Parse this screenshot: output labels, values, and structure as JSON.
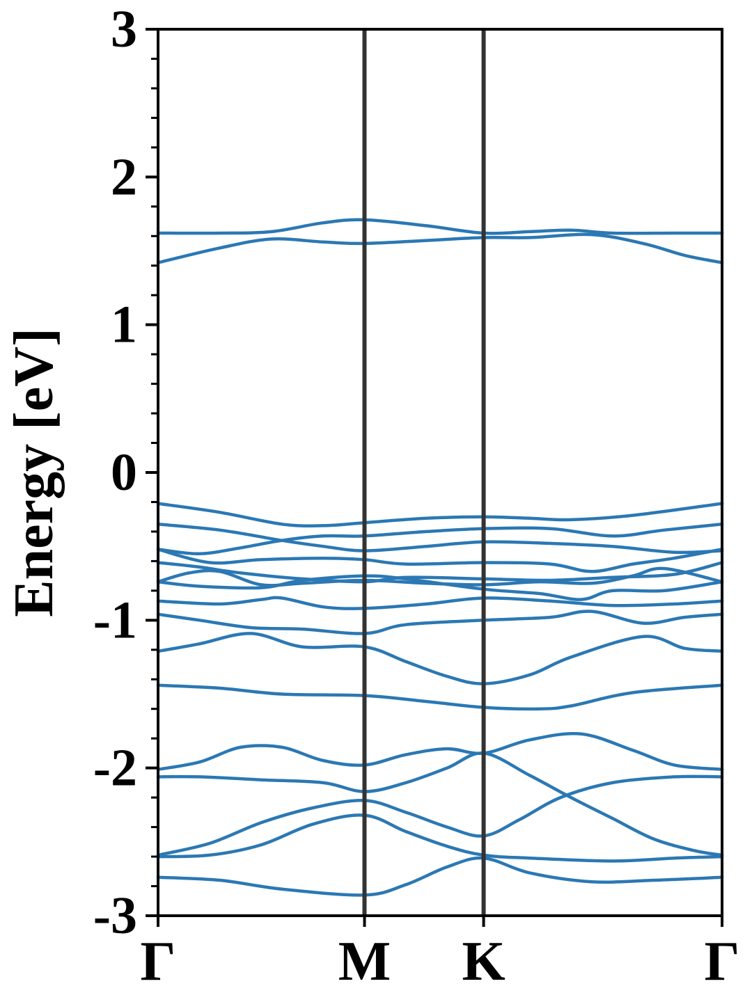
{
  "chart_data": {
    "type": "line",
    "title": "",
    "xlabel": "",
    "ylabel": "Energy [eV]",
    "ylim": [
      -3,
      3
    ],
    "xlim": [
      0,
      2.732
    ],
    "y_ticks": [
      {
        "value": 3,
        "label": "3"
      },
      {
        "value": 2,
        "label": "2"
      },
      {
        "value": 1,
        "label": "1"
      },
      {
        "value": 0,
        "label": "0"
      },
      {
        "value": -1,
        "label": "-1"
      },
      {
        "value": -2,
        "label": "-2"
      },
      {
        "value": -3,
        "label": "-3"
      }
    ],
    "y_minor_step": 0.2,
    "x_ticks": [
      {
        "value": 0,
        "label": "Γ"
      },
      {
        "value": 1,
        "label": "M"
      },
      {
        "value": 1.577,
        "label": "K"
      },
      {
        "value": 2.732,
        "label": "Γ"
      }
    ],
    "high_symmetry_lines": [
      1,
      1.577
    ],
    "grid": false,
    "legend": "none",
    "colors": {
      "band": "#2b78b4",
      "symmetry_line": "#333333",
      "axis": "#000000"
    },
    "series": [
      {
        "points": [
          [
            0,
            1.42
          ],
          [
            0.3,
            1.52
          ],
          [
            0.55,
            1.58
          ],
          [
            0.8,
            1.56
          ],
          [
            1,
            1.55
          ],
          [
            1.3,
            1.57
          ],
          [
            1.577,
            1.59
          ],
          [
            1.8,
            1.59
          ],
          [
            2.1,
            1.61
          ],
          [
            2.35,
            1.55
          ],
          [
            2.55,
            1.47
          ],
          [
            2.732,
            1.42
          ]
        ]
      },
      {
        "points": [
          [
            0,
            1.62
          ],
          [
            0.3,
            1.62
          ],
          [
            0.55,
            1.63
          ],
          [
            0.8,
            1.69
          ],
          [
            1,
            1.71
          ],
          [
            1.3,
            1.67
          ],
          [
            1.577,
            1.62
          ],
          [
            1.8,
            1.63
          ],
          [
            2.0,
            1.64
          ],
          [
            2.2,
            1.62
          ],
          [
            2.5,
            1.62
          ],
          [
            2.732,
            1.62
          ]
        ]
      },
      {
        "points": [
          [
            0,
            -0.21
          ],
          [
            0.3,
            -0.27
          ],
          [
            0.6,
            -0.35
          ],
          [
            0.8,
            -0.36
          ],
          [
            1,
            -0.34
          ],
          [
            1.3,
            -0.31
          ],
          [
            1.577,
            -0.3
          ],
          [
            1.8,
            -0.31
          ],
          [
            2.0,
            -0.32
          ],
          [
            2.3,
            -0.29
          ],
          [
            2.732,
            -0.21
          ]
        ]
      },
      {
        "points": [
          [
            0,
            -0.35
          ],
          [
            0.3,
            -0.39
          ],
          [
            0.6,
            -0.46
          ],
          [
            0.8,
            -0.5
          ],
          [
            1,
            -0.53
          ],
          [
            1.3,
            -0.5
          ],
          [
            1.577,
            -0.47
          ],
          [
            1.9,
            -0.48
          ],
          [
            2.2,
            -0.5
          ],
          [
            2.5,
            -0.54
          ],
          [
            2.732,
            -0.53
          ]
        ]
      },
      {
        "points": [
          [
            0,
            -0.52
          ],
          [
            0.2,
            -0.55
          ],
          [
            0.4,
            -0.51
          ],
          [
            0.6,
            -0.46
          ],
          [
            0.8,
            -0.43
          ],
          [
            1,
            -0.43
          ],
          [
            1.3,
            -0.4
          ],
          [
            1.577,
            -0.38
          ],
          [
            1.9,
            -0.38
          ],
          [
            2.2,
            -0.43
          ],
          [
            2.45,
            -0.39
          ],
          [
            2.732,
            -0.35
          ]
        ]
      },
      {
        "points": [
          [
            0,
            -0.52
          ],
          [
            0.25,
            -0.61
          ],
          [
            0.5,
            -0.59
          ],
          [
            0.8,
            -0.58
          ],
          [
            1,
            -0.59
          ],
          [
            1.2,
            -0.62
          ],
          [
            1.577,
            -0.61
          ],
          [
            1.9,
            -0.62
          ],
          [
            2.1,
            -0.67
          ],
          [
            2.3,
            -0.62
          ],
          [
            2.5,
            -0.58
          ],
          [
            2.732,
            -0.52
          ]
        ]
      },
      {
        "points": [
          [
            0,
            -0.61
          ],
          [
            0.2,
            -0.64
          ],
          [
            0.4,
            -0.68
          ],
          [
            0.7,
            -0.72
          ],
          [
            1,
            -0.74
          ],
          [
            1.2,
            -0.71
          ],
          [
            1.577,
            -0.72
          ],
          [
            1.9,
            -0.73
          ],
          [
            2.2,
            -0.71
          ],
          [
            2.5,
            -0.69
          ],
          [
            2.732,
            -0.61
          ]
        ]
      },
      {
        "points": [
          [
            0,
            -0.74
          ],
          [
            0.15,
            -0.68
          ],
          [
            0.3,
            -0.67
          ],
          [
            0.5,
            -0.76
          ],
          [
            0.7,
            -0.75
          ],
          [
            1,
            -0.73
          ],
          [
            1.3,
            -0.75
          ],
          [
            1.577,
            -0.76
          ],
          [
            1.85,
            -0.74
          ],
          [
            2.1,
            -0.75
          ],
          [
            2.3,
            -0.7
          ],
          [
            2.45,
            -0.65
          ],
          [
            2.732,
            -0.74
          ]
        ]
      },
      {
        "points": [
          [
            0,
            -0.74
          ],
          [
            0.2,
            -0.77
          ],
          [
            0.5,
            -0.78
          ],
          [
            0.7,
            -0.73
          ],
          [
            1,
            -0.7
          ],
          [
            1.2,
            -0.72
          ],
          [
            1.577,
            -0.79
          ],
          [
            1.85,
            -0.82
          ],
          [
            2.05,
            -0.86
          ],
          [
            2.2,
            -0.8
          ],
          [
            2.45,
            -0.8
          ],
          [
            2.732,
            -0.74
          ]
        ]
      },
      {
        "points": [
          [
            0,
            -0.87
          ],
          [
            0.3,
            -0.89
          ],
          [
            0.5,
            -0.86
          ],
          [
            0.6,
            -0.85
          ],
          [
            0.8,
            -0.91
          ],
          [
            1,
            -0.92
          ],
          [
            1.3,
            -0.89
          ],
          [
            1.577,
            -0.85
          ],
          [
            1.9,
            -0.87
          ],
          [
            2.2,
            -0.9
          ],
          [
            2.5,
            -0.89
          ],
          [
            2.732,
            -0.87
          ]
        ]
      },
      {
        "points": [
          [
            0,
            -0.96
          ],
          [
            0.2,
            -1.0
          ],
          [
            0.45,
            -1.05
          ],
          [
            0.7,
            -1.06
          ],
          [
            1,
            -1.09
          ],
          [
            1.2,
            -1.03
          ],
          [
            1.577,
            -1.0
          ],
          [
            1.9,
            -0.98
          ],
          [
            2.1,
            -0.94
          ],
          [
            2.35,
            -1.02
          ],
          [
            2.55,
            -0.98
          ],
          [
            2.732,
            -0.96
          ]
        ]
      },
      {
        "points": [
          [
            0,
            -1.21
          ],
          [
            0.2,
            -1.16
          ],
          [
            0.45,
            -1.09
          ],
          [
            0.7,
            -1.18
          ],
          [
            1,
            -1.18
          ],
          [
            1.2,
            -1.28
          ],
          [
            1.4,
            -1.38
          ],
          [
            1.577,
            -1.43
          ],
          [
            1.8,
            -1.37
          ],
          [
            2.0,
            -1.25
          ],
          [
            2.35,
            -1.11
          ],
          [
            2.55,
            -1.19
          ],
          [
            2.732,
            -1.21
          ]
        ]
      },
      {
        "points": [
          [
            0,
            -1.44
          ],
          [
            0.3,
            -1.46
          ],
          [
            0.6,
            -1.5
          ],
          [
            1,
            -1.51
          ],
          [
            1.3,
            -1.55
          ],
          [
            1.577,
            -1.59
          ],
          [
            1.85,
            -1.6
          ],
          [
            2.0,
            -1.58
          ],
          [
            2.3,
            -1.49
          ],
          [
            2.732,
            -1.44
          ]
        ]
      },
      {
        "points": [
          [
            0,
            -2.01
          ],
          [
            0.2,
            -1.96
          ],
          [
            0.4,
            -1.86
          ],
          [
            0.6,
            -1.86
          ],
          [
            0.8,
            -1.95
          ],
          [
            1,
            -1.98
          ],
          [
            1.2,
            -1.91
          ],
          [
            1.4,
            -1.87
          ],
          [
            1.577,
            -1.9
          ],
          [
            1.8,
            -1.81
          ],
          [
            2.05,
            -1.77
          ],
          [
            2.3,
            -1.88
          ],
          [
            2.5,
            -1.98
          ],
          [
            2.732,
            -2.01
          ]
        ]
      },
      {
        "points": [
          [
            0,
            -2.06
          ],
          [
            0.2,
            -2.06
          ],
          [
            0.5,
            -2.08
          ],
          [
            0.8,
            -2.1
          ],
          [
            1,
            -2.16
          ],
          [
            1.2,
            -2.1
          ],
          [
            1.4,
            -2.0
          ],
          [
            1.577,
            -1.9
          ],
          [
            1.8,
            -2.05
          ],
          [
            2.0,
            -2.2
          ],
          [
            2.2,
            -2.34
          ],
          [
            2.4,
            -2.48
          ],
          [
            2.6,
            -2.56
          ],
          [
            2.732,
            -2.59
          ]
        ]
      },
      {
        "points": [
          [
            0,
            -2.59
          ],
          [
            0.25,
            -2.51
          ],
          [
            0.5,
            -2.37
          ],
          [
            0.75,
            -2.27
          ],
          [
            1,
            -2.22
          ],
          [
            1.2,
            -2.3
          ],
          [
            1.4,
            -2.4
          ],
          [
            1.577,
            -2.46
          ],
          [
            1.75,
            -2.35
          ],
          [
            1.95,
            -2.2
          ],
          [
            2.2,
            -2.1
          ],
          [
            2.5,
            -2.06
          ],
          [
            2.732,
            -2.06
          ]
        ]
      },
      {
        "points": [
          [
            0,
            -2.6
          ],
          [
            0.25,
            -2.59
          ],
          [
            0.5,
            -2.52
          ],
          [
            0.75,
            -2.38
          ],
          [
            1,
            -2.32
          ],
          [
            1.2,
            -2.43
          ],
          [
            1.4,
            -2.53
          ],
          [
            1.577,
            -2.59
          ],
          [
            1.8,
            -2.61
          ],
          [
            2.2,
            -2.63
          ],
          [
            2.5,
            -2.61
          ],
          [
            2.732,
            -2.6
          ]
        ]
      },
      {
        "points": [
          [
            0,
            -2.74
          ],
          [
            0.3,
            -2.76
          ],
          [
            0.6,
            -2.82
          ],
          [
            1,
            -2.86
          ],
          [
            1.2,
            -2.79
          ],
          [
            1.4,
            -2.67
          ],
          [
            1.577,
            -2.61
          ],
          [
            1.8,
            -2.71
          ],
          [
            2.1,
            -2.77
          ],
          [
            2.4,
            -2.76
          ],
          [
            2.732,
            -2.74
          ]
        ]
      }
    ]
  }
}
